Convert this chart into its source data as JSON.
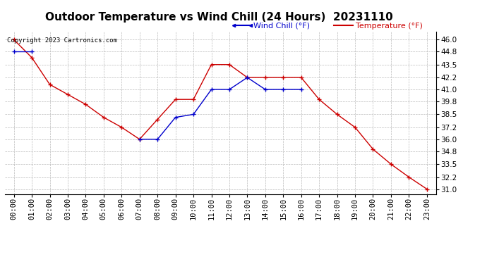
{
  "title": "Outdoor Temperature vs Wind Chill (24 Hours)  20231110",
  "copyright": "Copyright 2023 Cartronics.com",
  "legend_wind_chill": "Wind Chill (°F)",
  "legend_temperature": "Temperature (°F)",
  "x_labels": [
    "00:00",
    "01:00",
    "02:00",
    "03:00",
    "04:00",
    "05:00",
    "06:00",
    "07:00",
    "08:00",
    "09:00",
    "10:00",
    "11:00",
    "12:00",
    "13:00",
    "14:00",
    "15:00",
    "16:00",
    "17:00",
    "18:00",
    "19:00",
    "20:00",
    "21:00",
    "22:00",
    "23:00"
  ],
  "temperature": [
    46.0,
    44.2,
    41.5,
    40.5,
    39.5,
    38.2,
    37.2,
    36.0,
    38.0,
    40.0,
    40.0,
    43.5,
    43.5,
    42.2,
    42.2,
    42.2,
    42.2,
    40.0,
    38.5,
    37.2,
    35.0,
    33.5,
    32.2,
    31.0
  ],
  "wind_chill": [
    44.8,
    44.8,
    null,
    null,
    null,
    null,
    null,
    36.0,
    36.0,
    38.2,
    38.5,
    41.0,
    41.0,
    42.2,
    41.0,
    41.0,
    41.0,
    null,
    null,
    null,
    null,
    null,
    null,
    null
  ],
  "ylim_min": 30.5,
  "ylim_max": 46.8,
  "y_ticks": [
    31.0,
    32.2,
    33.5,
    34.8,
    36.0,
    37.2,
    38.5,
    39.8,
    41.0,
    42.2,
    43.5,
    44.8,
    46.0
  ],
  "temp_color": "#cc0000",
  "wind_chill_color": "#0000cc",
  "grid_color": "#bbbbbb",
  "bg_color": "#ffffff",
  "title_fontsize": 11,
  "legend_fontsize": 8,
  "tick_fontsize": 7.5
}
